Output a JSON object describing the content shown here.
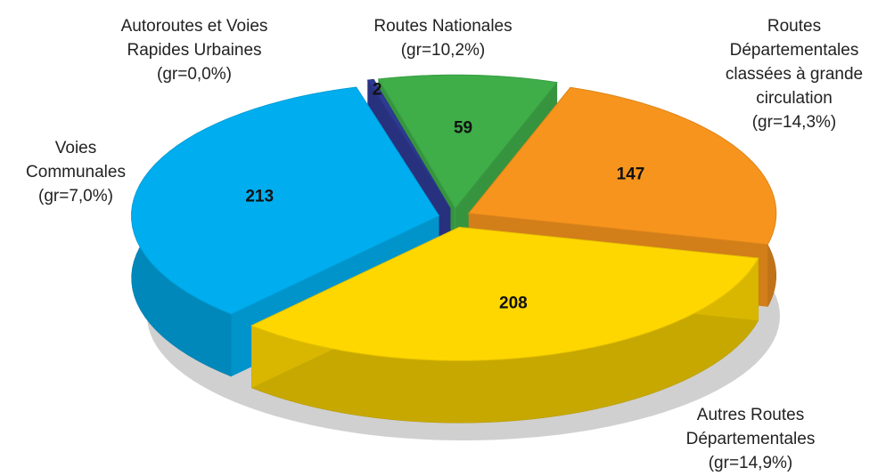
{
  "chart_data": {
    "type": "pie3d",
    "categories": [
      [
        "Autoroutes et Voies",
        "Rapides Urbaines"
      ],
      [
        "Routes Nationales"
      ],
      [
        "Routes",
        "Départementales",
        "classées à grande",
        "circulation"
      ],
      [
        "Autres Routes",
        "Départementales"
      ],
      [
        "Voies",
        "Communales"
      ]
    ],
    "notes": [
      "(gr=0,0%)",
      "(gr=10,2%)",
      "(gr=14,3%)",
      "(gr=14,9%)",
      "(gr=7,0%)"
    ],
    "values": [
      2,
      59,
      147,
      208,
      213
    ],
    "colors": [
      "#2e3a94",
      "#3fae49",
      "#f7941d",
      "#ffd700",
      "#00aeef"
    ]
  }
}
